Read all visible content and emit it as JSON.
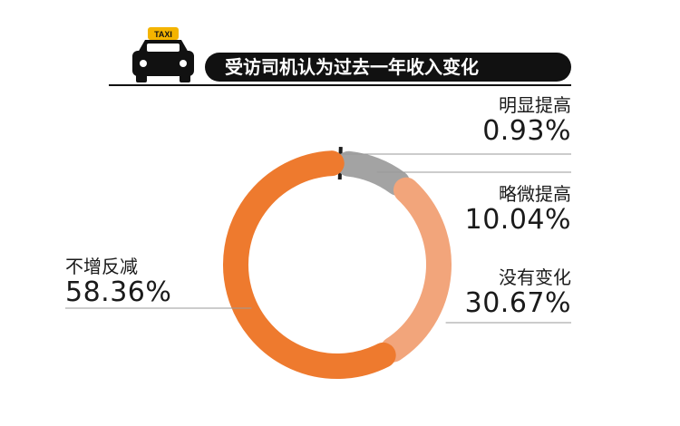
{
  "header": {
    "title": "受访司机认为过去一年收入变化",
    "badge": "TAXI",
    "icon": "taxi-icon"
  },
  "colors": {
    "明显提高": "#1c1c1c",
    "略微提高": "#a3a3a3",
    "没有变化": "#f2a57b",
    "不增反减": "#ee7a2e"
  },
  "chart_data": {
    "type": "pie",
    "title": "受访司机认为过去一年收入变化",
    "categories": [
      "明显提高",
      "略微提高",
      "没有变化",
      "不增反减"
    ],
    "values": [
      0.93,
      10.04,
      30.67,
      58.36
    ],
    "value_labels": [
      "0.93%",
      "10.04%",
      "30.67%",
      "58.36%"
    ],
    "donut": true
  }
}
